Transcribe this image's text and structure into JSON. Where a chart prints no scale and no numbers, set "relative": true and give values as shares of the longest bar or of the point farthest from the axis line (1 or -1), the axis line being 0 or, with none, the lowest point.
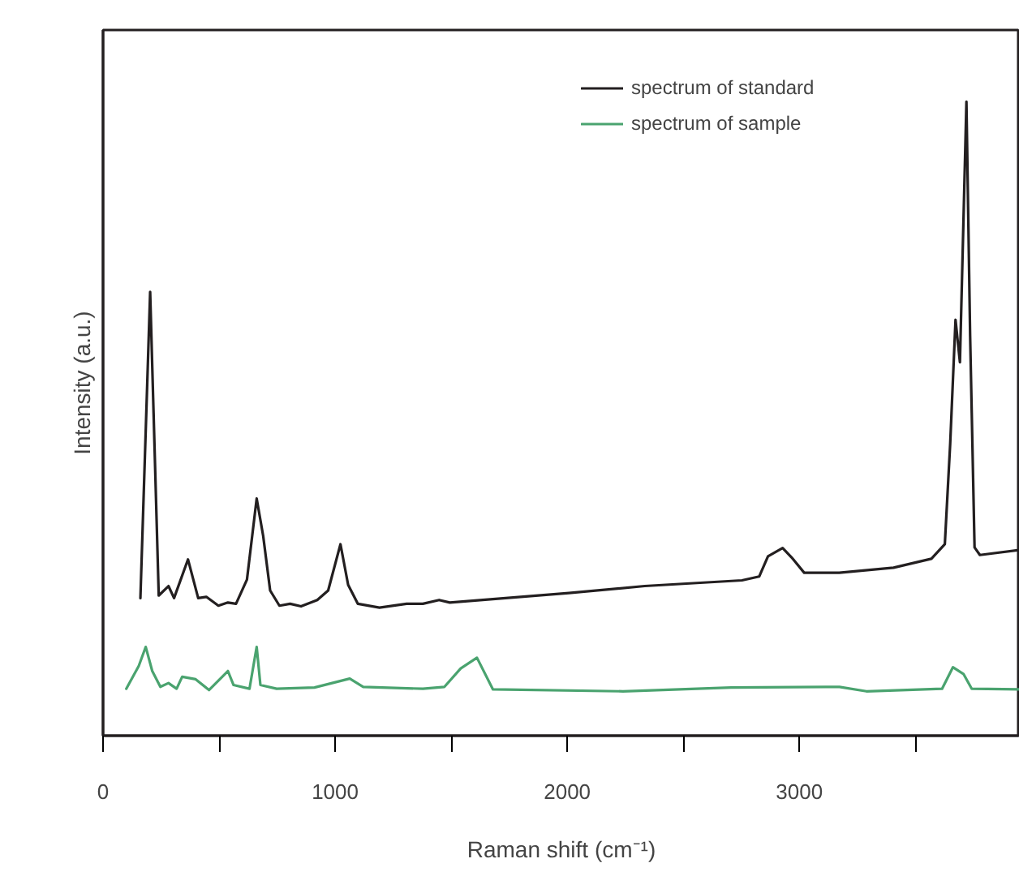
{
  "chart_data": {
    "type": "line",
    "xlabel": "Raman shift (cm⁻¹)",
    "ylabel": "Intensity (a.u.)",
    "relative": true,
    "xlim": [
      0,
      3950
    ],
    "xticks": [
      0,
      {
        "value": 500,
        "label": null
      },
      1000,
      {
        "value": 1500,
        "label": null
      },
      2000,
      {
        "value": 2500,
        "label": null
      },
      3000,
      {
        "value": 3500,
        "label": null
      }
    ],
    "legend": "top right",
    "grid": false,
    "marker": "none",
    "line_style": "solid",
    "series": [
      {
        "name": "spectrum of standard",
        "color": "#231f20",
        "x": [
          161,
          203,
          240,
          282,
          306,
          366,
          410,
          445,
          497,
          538,
          573,
          620,
          662,
          690,
          720,
          760,
          806,
          853,
          923,
          970,
          1023,
          1056,
          1098,
          1191,
          1308,
          1378,
          1448,
          1494,
          2007,
          2334,
          2753,
          2827,
          2865,
          2928,
          2967,
          3021,
          3172,
          3406,
          3569,
          3627,
          3650,
          3673,
          3692,
          3720,
          3736,
          3755,
          3778,
          3950
        ],
        "values": [
          0.217,
          0.7,
          0.221,
          0.236,
          0.217,
          0.278,
          0.217,
          0.219,
          0.205,
          0.21,
          0.208,
          0.246,
          0.374,
          0.315,
          0.229,
          0.205,
          0.208,
          0.204,
          0.214,
          0.229,
          0.302,
          0.238,
          0.208,
          0.202,
          0.208,
          0.208,
          0.214,
          0.21,
          0.225,
          0.236,
          0.245,
          0.251,
          0.283,
          0.296,
          0.281,
          0.257,
          0.257,
          0.265,
          0.279,
          0.302,
          0.46,
          0.656,
          0.589,
          1.0,
          0.63,
          0.297,
          0.285,
          0.293
        ]
      },
      {
        "name": "spectrum of sample",
        "color": "#4aa36f",
        "x": [
          100,
          154,
          184,
          212,
          247,
          282,
          317,
          341,
          399,
          457,
          538,
          562,
          631,
          662,
          678,
          748,
          911,
          1063,
          1121,
          1378,
          1471,
          1541,
          1611,
          1680,
          2240,
          2706,
          3173,
          3289,
          3615,
          3662,
          3708,
          3743,
          3950
        ],
        "values": [
          0.074,
          0.11,
          0.14,
          0.102,
          0.077,
          0.083,
          0.074,
          0.093,
          0.089,
          0.072,
          0.102,
          0.08,
          0.074,
          0.14,
          0.08,
          0.074,
          0.076,
          0.09,
          0.077,
          0.074,
          0.077,
          0.106,
          0.123,
          0.073,
          0.07,
          0.076,
          0.077,
          0.07,
          0.074,
          0.108,
          0.097,
          0.074,
          0.073
        ]
      }
    ]
  }
}
